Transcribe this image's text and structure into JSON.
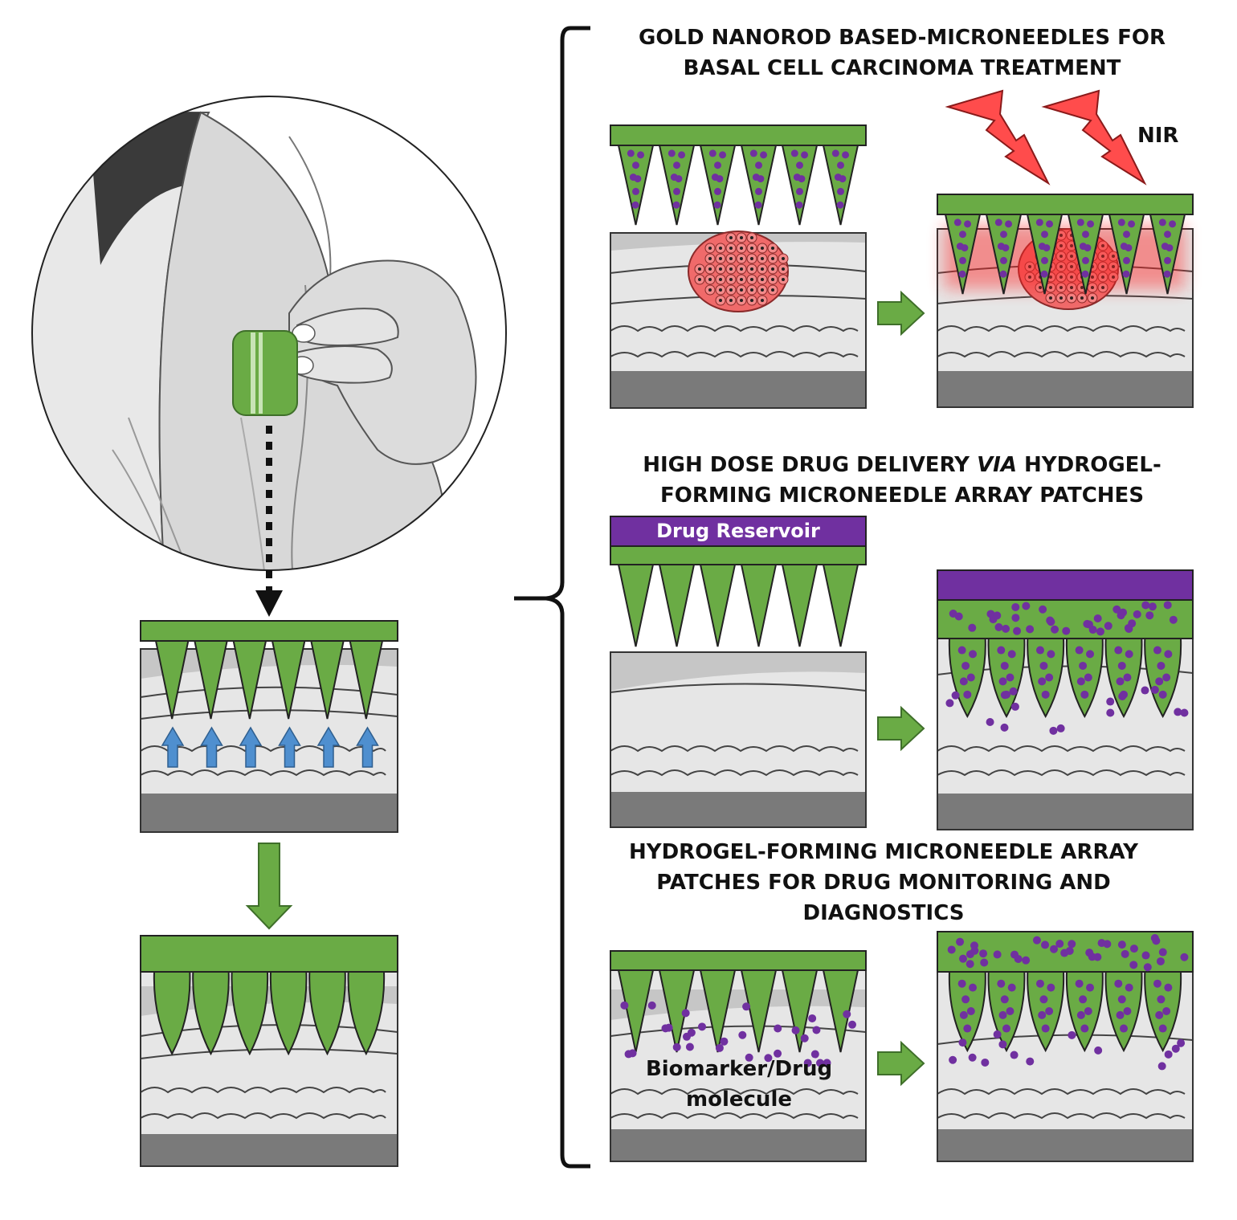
{
  "colors": {
    "needle_green": "#6aab45",
    "needle_outline": "#222222",
    "reservoir_purple": "#7030a0",
    "particle_purple": "#7030a0",
    "tumor_red": "#f06a6a",
    "nir_red": "#ff4c4c",
    "arrow_blue": "#4f8fcf",
    "skin_top": "#e6e6e6",
    "skin_band": "#c4c4c4",
    "skin_base": "#7a7a7a"
  },
  "icons": [
    "arm-illustration",
    "microneedle-patch-icon",
    "nir-lightning-icon",
    "right-arrow-icon",
    "down-arrow-icon",
    "brace-icon"
  ],
  "panels": {
    "gold": {
      "title_line1": "GOLD NANOROD BASED-MICRONEEDLES FOR",
      "title_line2": "BASAL CELL CARCINOMA TREATMENT",
      "nir_label": "NIR"
    },
    "hydrogel": {
      "title_line1_pre": "HIGH DOSE DRUG DELIVERY ",
      "title_line1_italic": "VIA",
      "title_line1_post": " HYDROGEL-",
      "title_line2": "FORMING MICRONEEDLE ARRAY PATCHES",
      "reservoir_label": "Drug Reservoir"
    },
    "monitoring": {
      "title_line1": "HYDROGEL-FORMING MICRONEEDLE ARRAY",
      "title_line2": "PATCHES FOR DRUG MONITORING AND",
      "title_line3": "DIAGNOSTICS",
      "molecule_label_line1": "Biomarker/Drug",
      "molecule_label_line2": "molecule"
    }
  }
}
